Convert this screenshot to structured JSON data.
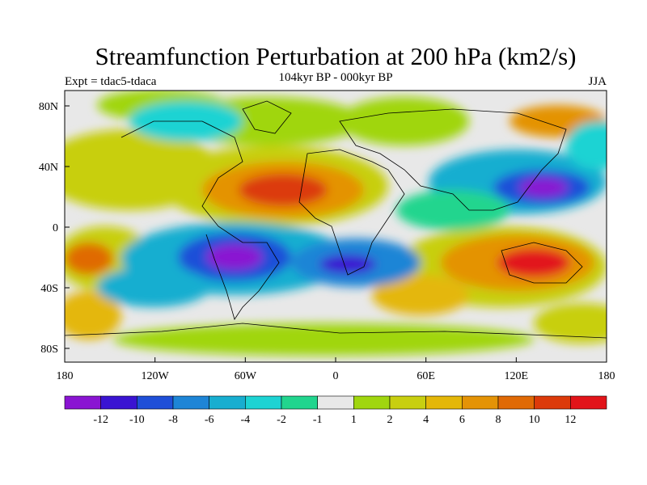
{
  "title": "Streamfunction Perturbation at 200 hPa (km2/s)",
  "subtitle": "104kyr BP - 000kyr BP",
  "left_label": "Expt = tdac5-tdaca",
  "right_label": "JJA",
  "lat_ticks": [
    "80N",
    "40N",
    "0",
    "40S",
    "80S"
  ],
  "lon_ticks": [
    "180",
    "120W",
    "60W",
    "0",
    "60E",
    "120E",
    "180"
  ],
  "colorbar": {
    "colors": [
      "#8a14d2",
      "#3a14d2",
      "#1f4fd8",
      "#1e85d6",
      "#18aed0",
      "#1dd3d3",
      "#21d58e",
      "#e8e8e8",
      "#a0d60f",
      "#c8cf10",
      "#e4b708",
      "#e49306",
      "#e06a06",
      "#dc3a0a",
      "#e2141a"
    ],
    "labels": [
      "-12",
      "-10",
      "-8",
      "-6",
      "-4",
      "-2",
      "-1",
      "1",
      "2",
      "4",
      "6",
      "8",
      "10",
      "12"
    ]
  }
}
